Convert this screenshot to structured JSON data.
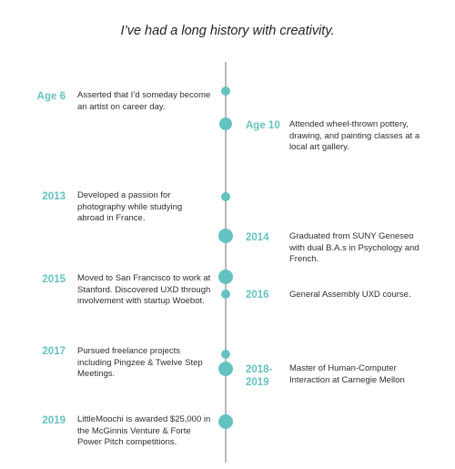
{
  "heading": "I’ve had a long history with creativity.",
  "accent_color": "#64c3c1",
  "events": [
    {
      "year": "Age 6",
      "text": "Asserted that I’d someday become an artist on career day."
    },
    {
      "year": "Age 10",
      "text": "Attended wheel-thrown pottery, drawing, and painting classes at a local art gallery."
    },
    {
      "year": "2013",
      "text": "Developed a passion for photography while studying abroad in France."
    },
    {
      "year": "2014",
      "text": "Graduated from SUNY Geneseo with dual B.A.s in Psychology and French."
    },
    {
      "year": "2015",
      "text": "Moved to San Francisco to work at Stanford. Discovered UXD through involvement with startup Woebot."
    },
    {
      "year": "2016",
      "text": "General Assembly UXD course."
    },
    {
      "year": "2017",
      "text": "Pursued freelance projects including Pingzee & Twelve Step Meetings."
    },
    {
      "year": "2018-\n2019",
      "text": "Master of Human-Computer Interaction at Carnegie Mellon"
    },
    {
      "year": "2019",
      "text": "LittleMoochi is awarded $25,000 in the McGinnis Venture & Forte Power Pitch competitions."
    }
  ]
}
